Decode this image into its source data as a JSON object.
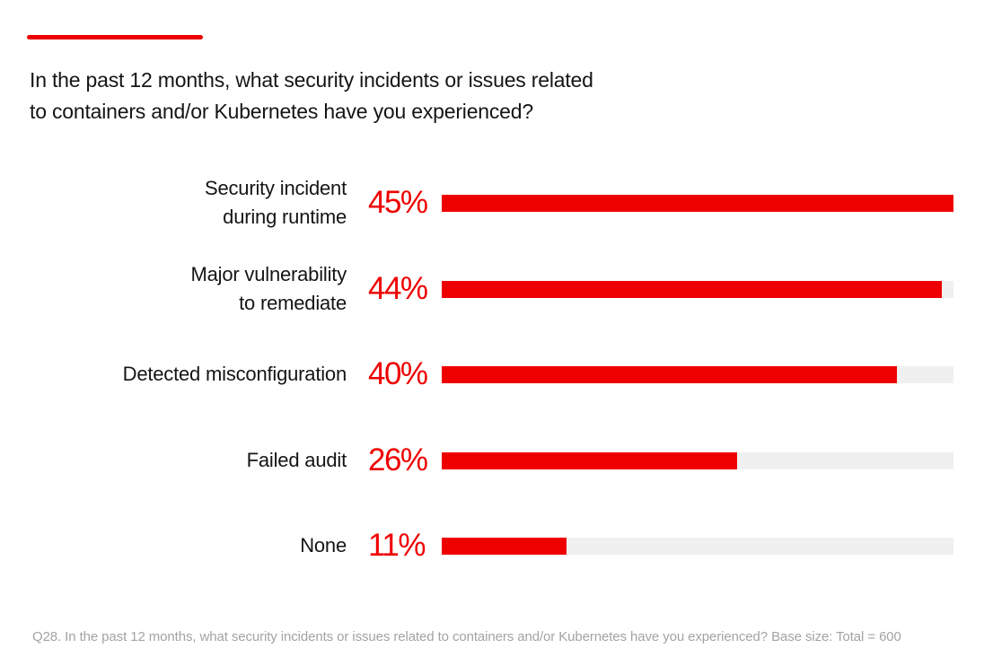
{
  "colors": {
    "accent": "#ee0000",
    "track": "#f0f0f0",
    "text": "#151515",
    "footnote": "#a3a3a3"
  },
  "title_lines": [
    "In the past 12 months, what security incidents or issues related",
    "to containers and/or Kubernetes have you experienced?"
  ],
  "chart_data": {
    "type": "bar",
    "orientation": "horizontal",
    "title": "In the past 12 months, what security incidents or issues related to containers and/or Kubernetes have you experienced?",
    "categories": [
      [
        "Security incident",
        "during runtime"
      ],
      [
        "Major vulnerability",
        "to remediate"
      ],
      [
        "Detected misconfiguration"
      ],
      [
        "Failed audit"
      ],
      [
        "None"
      ]
    ],
    "values": [
      45,
      44,
      40,
      26,
      11
    ],
    "value_labels": [
      "45%",
      "44%",
      "40%",
      "26%",
      "11%"
    ],
    "unit": "%",
    "xlim": [
      0,
      45
    ],
    "xlabel": "",
    "ylabel": "",
    "grid": false,
    "legend": "none"
  },
  "footnote": "Q28. In the past 12 months, what security incidents or issues related to containers and/or Kubernetes have you experienced? Base size: Total = 600"
}
